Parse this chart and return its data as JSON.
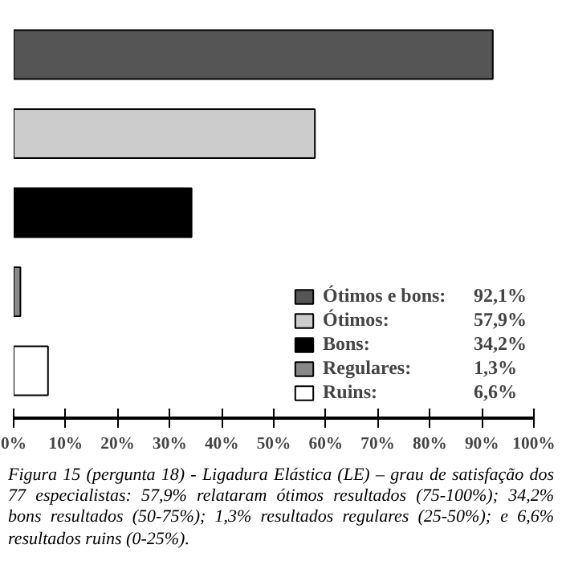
{
  "chart_data": {
    "type": "bar",
    "orientation": "horizontal",
    "stacked": true,
    "categories": [
      null,
      null,
      null,
      null,
      null
    ],
    "series": [
      {
        "name": "Ótimos e bons:",
        "color": "#555555",
        "values": [
          92.1,
          null,
          null,
          null,
          null
        ]
      },
      {
        "name": "Ótimos:",
        "color": "#cccccc",
        "values": [
          null,
          57.9,
          null,
          null,
          null
        ]
      },
      {
        "name": "Bons:",
        "color": "#000000",
        "values": [
          null,
          null,
          34.2,
          null,
          null
        ]
      },
      {
        "name": "Regulares:",
        "color": "#888888",
        "values": [
          null,
          null,
          null,
          1.3,
          null
        ]
      },
      {
        "name": "Ruins:",
        "color": "#ffffff",
        "values": [
          null,
          null,
          null,
          null,
          6.6
        ]
      }
    ],
    "xlim": [
      0,
      100
    ],
    "xticks": [
      {
        "value": 0,
        "label": "0%"
      },
      {
        "value": 10,
        "label": "10%"
      },
      {
        "value": 20,
        "label": "20%"
      },
      {
        "value": 30,
        "label": "30%"
      },
      {
        "value": 40,
        "label": "40%"
      },
      {
        "value": 50,
        "label": "50%"
      },
      {
        "value": 60,
        "label": "60%"
      },
      {
        "value": 70,
        "label": "70%"
      },
      {
        "value": 80,
        "label": "80%"
      },
      {
        "value": 90,
        "label": "90%"
      },
      {
        "value": 100,
        "label": "100%"
      }
    ],
    "grid": false,
    "legend": "bottom right",
    "annotations": [
      "Figura 15 (pergunta 18) - Ligadura Elástica (LE) – grau de satisfação dos 77 especialistas: 57,9% relataram ótimos resultados (75-100%); 34,2% bons resultados (50-75%); 1,3% resultados regulares (25-50%); e 6,6% resultados ruins (0-25%).",
      "92,1%",
      "57,9%",
      "34,2%",
      "1,3%",
      "6,6%"
    ]
  }
}
